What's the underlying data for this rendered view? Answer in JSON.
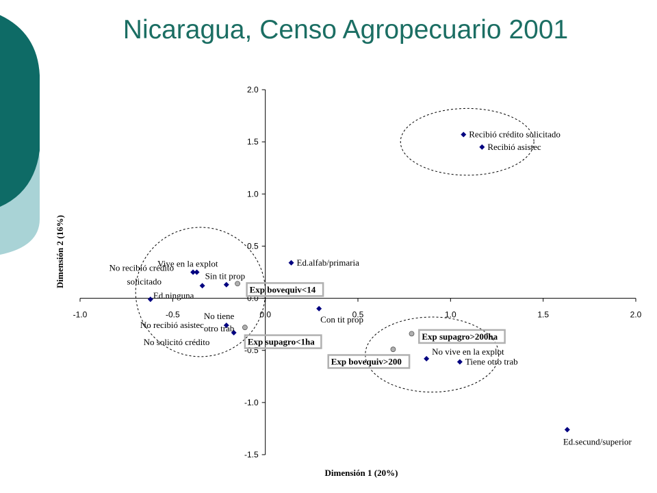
{
  "title": "Nicaragua, Censo Agropecuario 2001",
  "colors": {
    "title": "#1b6e63",
    "deco_dark": "#0e6b66",
    "deco_light": "#a9d3d6",
    "point": "#000080",
    "supp_point": "#b0b0b0"
  },
  "chart_data": {
    "type": "scatter",
    "xlabel": "Dimensión 1 (20%)",
    "ylabel": "Dimensión 2 (16%)",
    "xlim": [
      -1.0,
      2.0
    ],
    "ylim": [
      -1.5,
      2.0
    ],
    "xticks": [
      "-1.0",
      "-0.5",
      "0.0",
      "0.5",
      "1.0",
      "1.5",
      "2.0"
    ],
    "yticks": [
      "2.0",
      "1.5",
      "1.0",
      "0.5",
      "0.0",
      "-0.5",
      "-1.0",
      "-1.5"
    ],
    "grid": false,
    "series": [
      {
        "points": [
          {
            "x": 1.07,
            "y": 1.57,
            "label": "Recibió crédito solicitado"
          },
          {
            "x": 1.17,
            "y": 1.45,
            "label": "Recibió asistec"
          },
          {
            "x": 0.14,
            "y": 0.34,
            "label": "Ed.alfab/primaria"
          },
          {
            "x": -0.39,
            "y": 0.25,
            "label": "Vive en la explot"
          },
          {
            "x": -0.37,
            "y": 0.25,
            "label": "No recibió crédito solicitado"
          },
          {
            "x": -0.34,
            "y": 0.12,
            "label": "Sin tit prop"
          },
          {
            "x": -0.21,
            "y": 0.13,
            "label": ""
          },
          {
            "x": -0.62,
            "y": -0.01,
            "label": "Ed.ninguna"
          },
          {
            "x": -0.21,
            "y": -0.26,
            "label": "No recibió asistec"
          },
          {
            "x": -0.17,
            "y": -0.33,
            "label": "No solicitó crédito"
          },
          {
            "x": 0.29,
            "y": -0.1,
            "label": "Con tit prop"
          },
          {
            "x": 0.87,
            "y": -0.58,
            "label": "No vive en la explot"
          },
          {
            "x": 1.05,
            "y": -0.61,
            "label": "Tiene otro trab"
          },
          {
            "x": 1.63,
            "y": -1.26,
            "label": "Ed.secund/superior"
          }
        ]
      },
      {
        "points": [
          {
            "x": -0.15,
            "y": 0.14,
            "label": "Exp bovequiv<14"
          },
          {
            "x": -0.11,
            "y": -0.28,
            "label": "No tiene otro trab"
          },
          {
            "x": 0.79,
            "y": -0.34,
            "label": "Exp supagro>200ha"
          },
          {
            "x": 0.69,
            "y": -0.49,
            "label": "Exp bovequiv>200"
          }
        ]
      }
    ],
    "boxed_labels": [
      {
        "text": "Exp bovequiv<14",
        "x": -0.1,
        "y": 0.08
      },
      {
        "text": "Exp supagro<1ha",
        "x": -0.11,
        "y": -0.42
      },
      {
        "text": "Exp supagro>200ha",
        "x": 0.83,
        "y": -0.37
      },
      {
        "text": "Exp bovequiv>200",
        "x": 0.34,
        "y": -0.61
      }
    ],
    "annotations": [
      {
        "type": "ellipse",
        "cx": 1.09,
        "cy": 1.5,
        "rx": 0.36,
        "ry": 0.32
      },
      {
        "type": "ellipse",
        "cx": -0.35,
        "cy": 0.06,
        "rx": 0.35,
        "ry": 0.62
      },
      {
        "type": "ellipse",
        "cx": 0.9,
        "cy": -0.54,
        "rx": 0.36,
        "ry": 0.36
      }
    ]
  }
}
